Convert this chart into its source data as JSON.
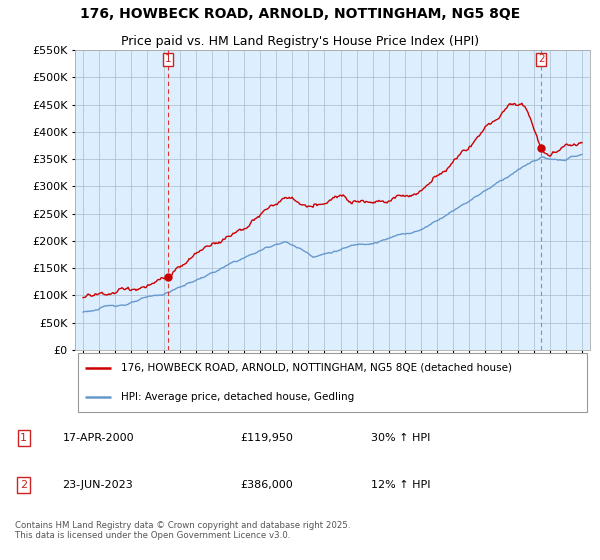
{
  "title": "176, HOWBECK ROAD, ARNOLD, NOTTINGHAM, NG5 8QE",
  "subtitle": "Price paid vs. HM Land Registry's House Price Index (HPI)",
  "legend_label_red": "176, HOWBECK ROAD, ARNOLD, NOTTINGHAM, NG5 8QE (detached house)",
  "legend_label_blue": "HPI: Average price, detached house, Gedling",
  "annotation1_label": "1",
  "annotation1_date": "17-APR-2000",
  "annotation1_price": "£119,950",
  "annotation1_hpi": "30% ↑ HPI",
  "annotation1_year": 2000.29,
  "annotation1_value": 119950,
  "annotation2_label": "2",
  "annotation2_date": "23-JUN-2023",
  "annotation2_price": "£386,000",
  "annotation2_hpi": "12% ↑ HPI",
  "annotation2_year": 2023.47,
  "annotation2_value": 386000,
  "copyright": "Contains HM Land Registry data © Crown copyright and database right 2025.\nThis data is licensed under the Open Government Licence v3.0.",
  "ylim": [
    0,
    550000
  ],
  "yticks": [
    0,
    50000,
    100000,
    150000,
    200000,
    250000,
    300000,
    350000,
    400000,
    450000,
    500000,
    550000
  ],
  "ytick_labels": [
    "£0",
    "£50K",
    "£100K",
    "£150K",
    "£200K",
    "£250K",
    "£300K",
    "£350K",
    "£400K",
    "£450K",
    "£500K",
    "£550K"
  ],
  "xlim_start": 1994.5,
  "xlim_end": 2026.5,
  "background_color": "#ffffff",
  "chart_bg_color": "#ddeeff",
  "grid_color": "#aabbcc",
  "red_color": "#cc0000",
  "blue_color": "#6699cc",
  "vline1_color": "#dd3333",
  "vline2_color": "#6699cc",
  "annotation_box_color": "#cc2222",
  "title_fontsize": 10,
  "subtitle_fontsize": 9,
  "axis_fontsize": 8,
  "legend_fontsize": 8
}
